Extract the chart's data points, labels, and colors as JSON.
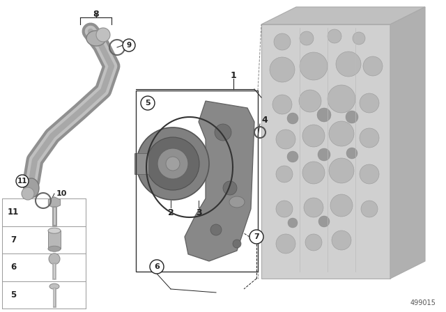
{
  "bg_color": "#ffffff",
  "part_number": "499015",
  "lc": "#222222",
  "gray1": "#c8c8c8",
  "gray2": "#a8a8a8",
  "gray3": "#888888",
  "gray4": "#686868",
  "gray5": "#484848",
  "engine_color": "#cccccc",
  "pipe_color": "#b0b0b0",
  "pump_dark": "#787878",
  "pump_mid": "#9a9a9a",
  "pump_light": "#c0c0c0",
  "bracket_color": "#858585",
  "label_fs": 9,
  "small_fs": 7.5
}
